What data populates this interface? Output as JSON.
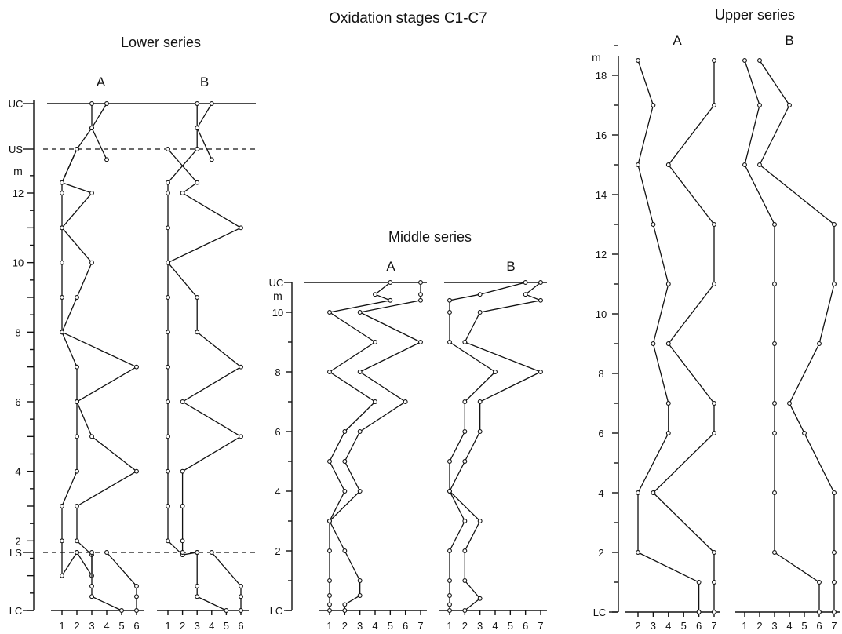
{
  "title": "Oxidation stages C1-C7",
  "chart_data": [
    {
      "type": "line",
      "panel": "Lower series",
      "depth_unit": "m",
      "depth_ticks": [
        "12",
        "10",
        "8",
        "6",
        "4",
        "2"
      ],
      "markers": [
        "UC",
        "US",
        "LS",
        "LC"
      ],
      "x_ticks": [
        "1",
        "2",
        "3",
        "4",
        "5",
        "6"
      ],
      "xlim": [
        1,
        6
      ],
      "columns": [
        {
          "name": "A",
          "series": [
            {
              "points": [
                [
                  3,
                  "UC"
                ],
                [
                  3,
                  "UC-0.7"
                ],
                [
                  2,
                  "US"
                ],
                [
                  1,
                  12.3
                ],
                [
                  1,
                  12
                ],
                [
                  1,
                  11
                ],
                [
                  1,
                  10
                ],
                [
                  1,
                  9
                ],
                [
                  1,
                  8
                ],
                [
                  2,
                  7
                ],
                [
                  2,
                  6
                ],
                [
                  2,
                  5
                ],
                [
                  2,
                  4
                ],
                [
                  1,
                  3
                ],
                [
                  1,
                  2
                ],
                [
                  1,
                  1
                ],
                [
                  2,
                  "LS"
                ]
              ]
            },
            {
              "points": [
                [
                  4,
                  "UC"
                ],
                [
                  3,
                  "UC-0.7"
                ],
                [
                  4,
                  "US-0.3"
                ]
              ]
            },
            {
              "points": [
                [
                  2,
                  "US"
                ],
                [
                  1,
                  12.3
                ],
                [
                  3,
                  12
                ],
                [
                  1,
                  11
                ],
                [
                  3,
                  10
                ],
                [
                  2,
                  9
                ],
                [
                  1,
                  8
                ],
                [
                  6,
                  7
                ],
                [
                  2,
                  6
                ],
                [
                  3,
                  5
                ],
                [
                  6,
                  4
                ],
                [
                  2,
                  3
                ],
                [
                  2,
                  2
                ],
                [
                  3,
                  1.6
                ],
                [
                  3,
                  1
                ],
                [
                  2,
                  "LS"
                ]
              ]
            },
            {
              "points": [
                [
                  3,
                  "LS"
                ],
                [
                  3,
                  "LC+0.7"
                ],
                [
                  3,
                  "LC+0.4"
                ],
                [
                  5,
                  "LC"
                ]
              ]
            },
            {
              "points": [
                [
                  4,
                  "LS"
                ],
                [
                  6,
                  "LC+0.7"
                ],
                [
                  6,
                  "LC+0.4"
                ],
                [
                  6,
                  "LC"
                ]
              ]
            }
          ]
        },
        {
          "name": "B",
          "series": [
            {
              "points": [
                [
                  3,
                  "UC"
                ],
                [
                  3,
                  "UC-0.7"
                ],
                [
                  3,
                  "US"
                ],
                [
                  1,
                  12.3
                ],
                [
                  1,
                  12
                ],
                [
                  1,
                  11
                ],
                [
                  1,
                  10
                ],
                [
                  1,
                  9
                ],
                [
                  1,
                  8
                ],
                [
                  1,
                  7
                ],
                [
                  1,
                  6
                ],
                [
                  1,
                  5
                ],
                [
                  1,
                  4
                ],
                [
                  1,
                  3
                ],
                [
                  1,
                  2
                ],
                [
                  2,
                  1.6
                ],
                [
                  3,
                  "LS"
                ]
              ]
            },
            {
              "points": [
                [
                  4,
                  "UC"
                ],
                [
                  3,
                  "UC-0.7"
                ],
                [
                  4,
                  "US-0.3"
                ]
              ]
            },
            {
              "points": [
                [
                  1,
                  "US"
                ],
                [
                  3,
                  12.3
                ],
                [
                  2,
                  12
                ],
                [
                  6,
                  11
                ],
                [
                  1,
                  10
                ],
                [
                  3,
                  9
                ],
                [
                  3,
                  8
                ],
                [
                  6,
                  7
                ],
                [
                  2,
                  6
                ],
                [
                  6,
                  5
                ],
                [
                  2,
                  4
                ],
                [
                  2,
                  3
                ],
                [
                  2,
                  2
                ],
                [
                  2,
                  1.6
                ],
                [
                  2,
                  "LS"
                ]
              ]
            },
            {
              "points": [
                [
                  3,
                  "LS"
                ],
                [
                  3,
                  "LC+0.7"
                ],
                [
                  3,
                  "LC+0.4"
                ],
                [
                  5,
                  "LC"
                ]
              ]
            },
            {
              "points": [
                [
                  4,
                  "LS"
                ],
                [
                  6,
                  "LC+0.7"
                ],
                [
                  6,
                  "LC+0.4"
                ],
                [
                  6,
                  "LC"
                ]
              ]
            }
          ]
        }
      ]
    },
    {
      "type": "line",
      "panel": "Middle series",
      "depth_unit": "m",
      "depth_ticks": [
        "10",
        "8",
        "6",
        "4",
        "2"
      ],
      "markers": [
        "UC",
        "LC"
      ],
      "x_ticks": [
        "1",
        "2",
        "3",
        "4",
        "5",
        "6",
        "7"
      ],
      "xlim": [
        1,
        7
      ],
      "columns": [
        {
          "name": "A",
          "series": [
            {
              "points": [
                [
                  5,
                  "UC"
                ],
                [
                  4,
                  10.6
                ],
                [
                  5,
                  10.4
                ],
                [
                  1,
                  10
                ],
                [
                  4,
                  9
                ],
                [
                  1,
                  8
                ],
                [
                  4,
                  7
                ],
                [
                  2,
                  6
                ],
                [
                  1,
                  5
                ],
                [
                  2,
                  4
                ],
                [
                  1,
                  3
                ],
                [
                  1,
                  2
                ],
                [
                  1,
                  1
                ],
                [
                  1,
                  0.5
                ],
                [
                  1,
                  0.2
                ],
                [
                  1,
                  "LC"
                ]
              ]
            },
            {
              "points": [
                [
                  7,
                  "UC"
                ],
                [
                  7,
                  10.6
                ],
                [
                  7,
                  10.4
                ],
                [
                  3,
                  10
                ],
                [
                  7,
                  9
                ],
                [
                  3,
                  8
                ],
                [
                  6,
                  7
                ],
                [
                  3,
                  6
                ],
                [
                  2,
                  5
                ],
                [
                  3,
                  4
                ],
                [
                  1,
                  3
                ],
                [
                  2,
                  2
                ],
                [
                  3,
                  1
                ],
                [
                  3,
                  0.5
                ],
                [
                  2,
                  0.2
                ],
                [
                  2,
                  "LC"
                ]
              ]
            }
          ]
        },
        {
          "name": "B",
          "series": [
            {
              "points": [
                [
                  6,
                  "UC"
                ],
                [
                  3,
                  10.6
                ],
                [
                  1,
                  10.4
                ],
                [
                  1,
                  10
                ],
                [
                  1,
                  9
                ],
                [
                  4,
                  8
                ],
                [
                  2,
                  7
                ],
                [
                  2,
                  6
                ],
                [
                  1,
                  5
                ],
                [
                  1,
                  4
                ],
                [
                  2,
                  3
                ],
                [
                  1,
                  2
                ],
                [
                  1,
                  1
                ],
                [
                  1,
                  0.5
                ],
                [
                  1,
                  0.2
                ],
                [
                  1,
                  "LC"
                ]
              ]
            },
            {
              "points": [
                [
                  7,
                  "UC"
                ],
                [
                  6,
                  10.6
                ],
                [
                  7,
                  10.4
                ],
                [
                  3,
                  10
                ],
                [
                  2,
                  9
                ],
                [
                  7,
                  8
                ],
                [
                  3,
                  7
                ],
                [
                  3,
                  6
                ],
                [
                  2,
                  5
                ],
                [
                  1,
                  4
                ],
                [
                  3,
                  3
                ],
                [
                  2,
                  2
                ],
                [
                  2,
                  1
                ],
                [
                  3,
                  0.4
                ],
                [
                  2,
                  "LC"
                ]
              ]
            }
          ]
        }
      ]
    },
    {
      "type": "line",
      "panel": "Upper series",
      "depth_unit": "m",
      "depth_ticks": [
        "18",
        "16",
        "14",
        "12",
        "10",
        "8",
        "6",
        "4",
        "2"
      ],
      "markers": [
        "LC"
      ],
      "x_ticks": [
        "2",
        "3",
        "4",
        "5",
        "6",
        "7"
      ],
      "xlim": [
        1.5,
        7.3
      ],
      "columns": [
        {
          "name": "A",
          "series": [
            {
              "points": [
                [
                  2,
                  18.5
                ],
                [
                  3,
                  17
                ],
                [
                  2,
                  15
                ],
                [
                  3,
                  13
                ],
                [
                  4,
                  11
                ],
                [
                  3,
                  9
                ],
                [
                  4,
                  7
                ],
                [
                  4,
                  6
                ],
                [
                  2,
                  4
                ],
                [
                  2,
                  2
                ],
                [
                  6,
                  1
                ],
                [
                  6,
                  "LC"
                ]
              ]
            },
            {
              "points": [
                [
                  7,
                  18.5
                ],
                [
                  7,
                  17
                ],
                [
                  4,
                  15
                ],
                [
                  7,
                  13
                ],
                [
                  7,
                  11
                ],
                [
                  4,
                  9
                ],
                [
                  7,
                  7
                ],
                [
                  7,
                  6
                ],
                [
                  3,
                  4
                ],
                [
                  7,
                  2
                ],
                [
                  7,
                  1
                ],
                [
                  7,
                  "LC"
                ]
              ]
            }
          ]
        },
        {
          "name": "B",
          "series": [
            {
              "points": [
                [
                  1,
                  18.5
                ],
                [
                  2,
                  17
                ],
                [
                  1,
                  15
                ],
                [
                  3,
                  13
                ],
                [
                  3,
                  11
                ],
                [
                  3,
                  9
                ],
                [
                  3,
                  7
                ],
                [
                  3,
                  6
                ],
                [
                  3,
                  4
                ],
                [
                  3,
                  2
                ],
                [
                  6,
                  1
                ],
                [
                  6,
                  "LC"
                ]
              ]
            },
            {
              "points": [
                [
                  2,
                  18.5
                ],
                [
                  4,
                  17
                ],
                [
                  2,
                  15
                ],
                [
                  7,
                  13
                ],
                [
                  7,
                  11
                ],
                [
                  6,
                  9
                ],
                [
                  4,
                  7
                ],
                [
                  5,
                  6
                ],
                [
                  7,
                  4
                ],
                [
                  7,
                  2
                ],
                [
                  7,
                  1
                ],
                [
                  7,
                  "LC"
                ]
              ]
            }
          ]
        }
      ]
    }
  ]
}
